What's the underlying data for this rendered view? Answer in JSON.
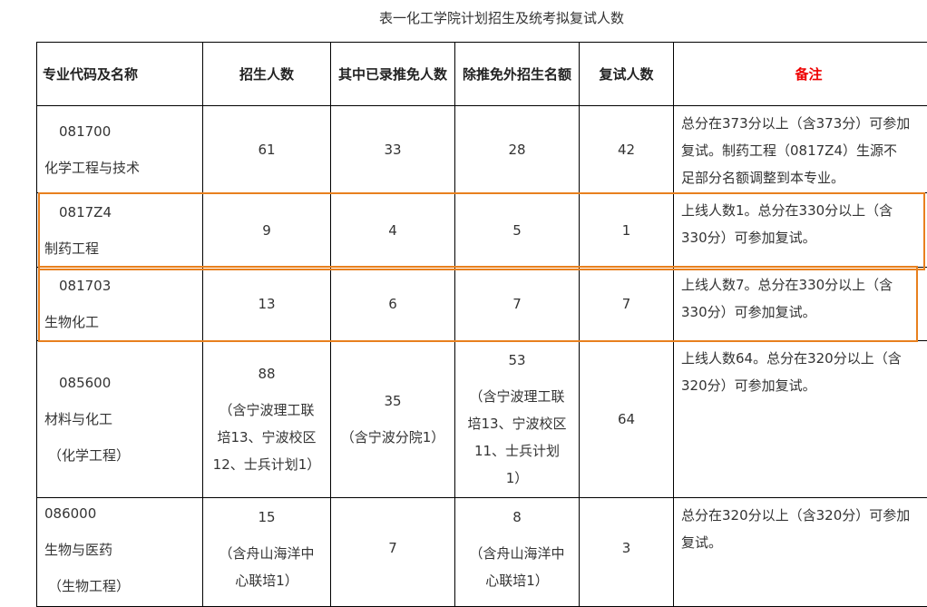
{
  "title": "表一化工学院计划招生及统考拟复试人数",
  "headers": [
    "专业代码及名称",
    "招生人数",
    "其中已录推免人数",
    "除推免外招生名额",
    "复试人数",
    "备注"
  ],
  "highlight_color": "#e8801e",
  "rows": [
    {
      "code": "081700",
      "name": [
        "化学工程与技术"
      ],
      "enroll": [
        "61"
      ],
      "exempt": [
        "33"
      ],
      "quota": [
        "28"
      ],
      "retest": "42",
      "note": [
        "总分在373分以上（含373分）可参加",
        "复试。制药工程（0817Z4）生源不",
        "足部分名额调整到本专业。"
      ]
    },
    {
      "code": "0817Z4",
      "name": [
        "制药工程"
      ],
      "enroll": [
        "9"
      ],
      "exempt": [
        "4"
      ],
      "quota": [
        "5"
      ],
      "retest": "1",
      "note": [
        "上线人数1。总分在330分以上（含",
        "330分）可参加复试。"
      ]
    },
    {
      "code": "081703",
      "name": [
        "生物化工"
      ],
      "enroll": [
        "13"
      ],
      "exempt": [
        "6"
      ],
      "quota": [
        "7"
      ],
      "retest": "7",
      "note": [
        "上线人数7。总分在330分以上（含",
        "330分）可参加复试。"
      ]
    },
    {
      "code": "085600",
      "name": [
        "材料与化工",
        "（化学工程）"
      ],
      "enroll": [
        "88",
        "（含宁波理工联",
        "培13、宁波校区",
        "12、士兵计划1）"
      ],
      "exempt": [
        "35",
        "（含宁波分院1）"
      ],
      "quota": [
        "53",
        "（含宁波理工联",
        "培13、宁波校区",
        "11、士兵计划",
        "1）"
      ],
      "retest": "64",
      "note": [
        "上线人数64。总分在320分以上（含",
        "320分）可参加复试。"
      ]
    },
    {
      "code": "086000",
      "name": [
        "生物与医药",
        "（生物工程）"
      ],
      "enroll": [
        "15",
        "（含舟山海洋中",
        "心联培1）"
      ],
      "exempt": [
        "7"
      ],
      "quota": [
        "8",
        "（含舟山海洋中",
        "心联培1）"
      ],
      "retest": "3",
      "note": [
        "总分在320分以上（含320分）可参加",
        "复试。"
      ]
    }
  ]
}
